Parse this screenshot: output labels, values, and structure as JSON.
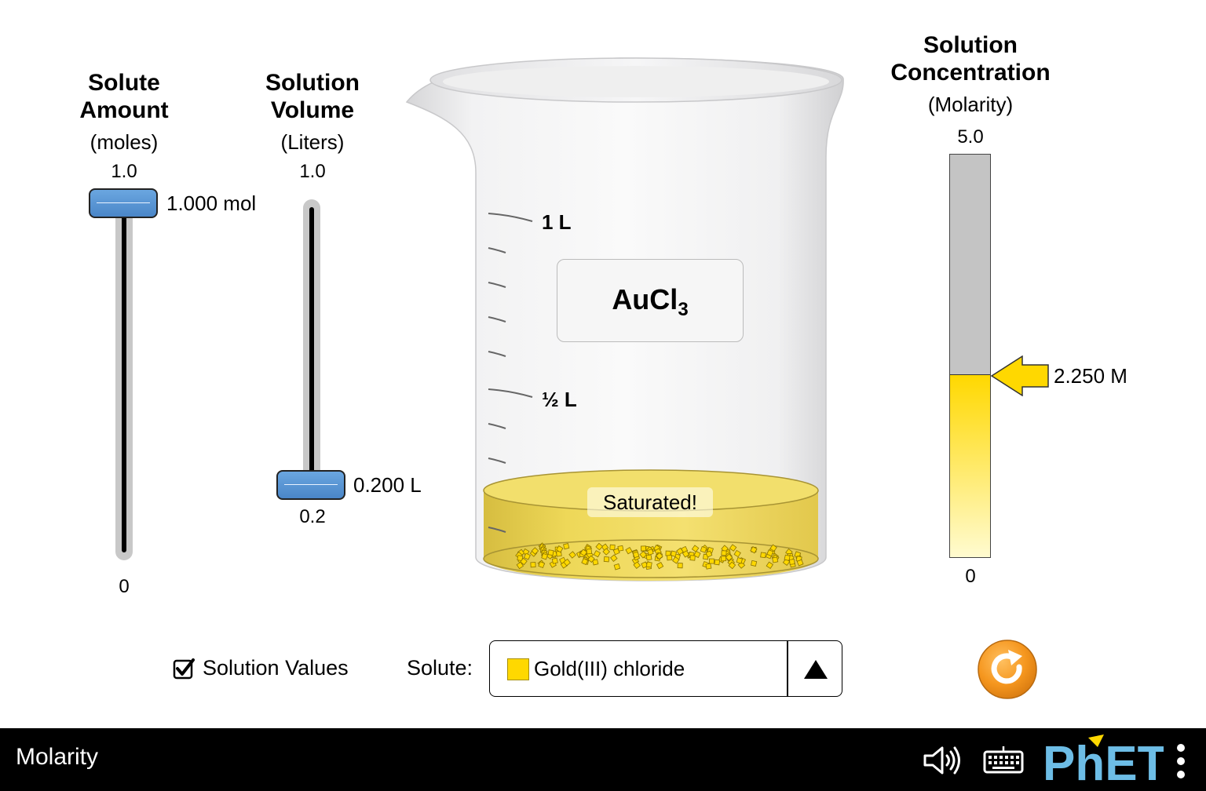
{
  "solute_amount": {
    "title_line1": "Solute",
    "title_line2": "Amount",
    "unit": "(moles)",
    "max_label": "1.0",
    "min_label": "0",
    "value_label": "1.000 mol",
    "value_fraction": 1.0
  },
  "solution_volume": {
    "title_line1": "Solution",
    "title_line2": "Volume",
    "unit": "(Liters)",
    "max_label": "1.0",
    "min_label": "0.2",
    "value_label": "0.200 L",
    "value_fraction": 0.0
  },
  "beaker": {
    "mark_1l": "1 L",
    "mark_half_l": "½ L",
    "formula_base": "AuCl",
    "formula_sub": "3",
    "saturated_label": "Saturated!",
    "solution_color": "#f0d84a"
  },
  "concentration": {
    "title_line1": "Solution",
    "title_line2": "Concentration",
    "unit": "(Molarity)",
    "max_label": "5.0",
    "min_label": "0",
    "value_label": "2.250 M",
    "value_fraction": 0.45,
    "fill_color": "#ffd800",
    "empty_color": "#c4c4c4"
  },
  "controls": {
    "checkbox_label": "Solution Values",
    "checkbox_checked": true,
    "solute_label": "Solute:",
    "solute_selected": "Gold(III) chloride",
    "solute_color": "#ffd800"
  },
  "navbar": {
    "sim_title": "Molarity",
    "brand": "PhET"
  }
}
